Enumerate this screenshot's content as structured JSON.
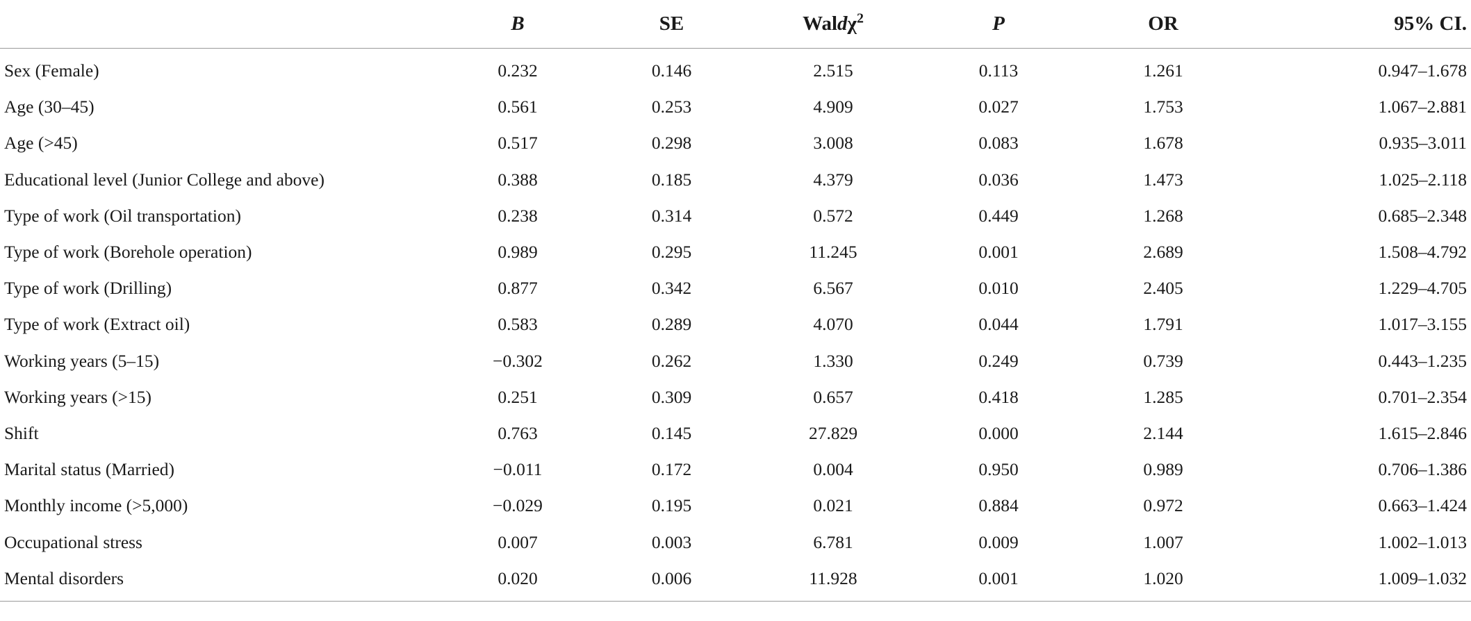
{
  "table": {
    "headers": {
      "label": "",
      "b": "B",
      "se": "SE",
      "wald_prefix": "Wal",
      "wald_italic": "d",
      "wald_chi": "χ",
      "wald_sup": "2",
      "p": "P",
      "or": "OR",
      "ci": "95% CI."
    },
    "rows": [
      {
        "label": "Sex (Female)",
        "b": "0.232",
        "se": "0.146",
        "wald": "2.515",
        "p": "0.113",
        "or": "1.261",
        "ci": "0.947–1.678"
      },
      {
        "label": "Age (30–45)",
        "b": "0.561",
        "se": "0.253",
        "wald": "4.909",
        "p": "0.027",
        "or": "1.753",
        "ci": "1.067–2.881"
      },
      {
        "label": "Age (>45)",
        "b": "0.517",
        "se": "0.298",
        "wald": "3.008",
        "p": "0.083",
        "or": "1.678",
        "ci": "0.935–3.011"
      },
      {
        "label": "Educational level (Junior College and above)",
        "b": "0.388",
        "se": "0.185",
        "wald": "4.379",
        "p": "0.036",
        "or": "1.473",
        "ci": "1.025–2.118"
      },
      {
        "label": "Type of work (Oil transportation)",
        "b": "0.238",
        "se": "0.314",
        "wald": "0.572",
        "p": "0.449",
        "or": "1.268",
        "ci": "0.685–2.348"
      },
      {
        "label": "Type of work (Borehole operation)",
        "b": "0.989",
        "se": "0.295",
        "wald": "11.245",
        "p": "0.001",
        "or": "2.689",
        "ci": "1.508–4.792"
      },
      {
        "label": "Type of work (Drilling)",
        "b": "0.877",
        "se": "0.342",
        "wald": "6.567",
        "p": "0.010",
        "or": "2.405",
        "ci": "1.229–4.705"
      },
      {
        "label": "Type of work (Extract oil)",
        "b": "0.583",
        "se": "0.289",
        "wald": "4.070",
        "p": "0.044",
        "or": "1.791",
        "ci": "1.017–3.155"
      },
      {
        "label": "Working years (5–15)",
        "b": "−0.302",
        "se": "0.262",
        "wald": "1.330",
        "p": "0.249",
        "or": "0.739",
        "ci": "0.443–1.235"
      },
      {
        "label": "Working years (>15)",
        "b": "0.251",
        "se": "0.309",
        "wald": "0.657",
        "p": "0.418",
        "or": "1.285",
        "ci": "0.701–2.354"
      },
      {
        "label": "Shift",
        "b": "0.763",
        "se": "0.145",
        "wald": "27.829",
        "p": "0.000",
        "or": "2.144",
        "ci": "1.615–2.846"
      },
      {
        "label": "Marital status (Married)",
        "b": "−0.011",
        "se": "0.172",
        "wald": "0.004",
        "p": "0.950",
        "or": "0.989",
        "ci": "0.706–1.386"
      },
      {
        "label": "Monthly income (>5,000)",
        "b": "−0.029",
        "se": "0.195",
        "wald": "0.021",
        "p": "0.884",
        "or": "0.972",
        "ci": "0.663–1.424"
      },
      {
        "label": "Occupational stress",
        "b": "0.007",
        "se": "0.003",
        "wald": "6.781",
        "p": "0.009",
        "or": "1.007",
        "ci": "1.002–1.013"
      },
      {
        "label": "Mental disorders",
        "b": "0.020",
        "se": "0.006",
        "wald": "11.928",
        "p": "0.001",
        "or": "1.020",
        "ci": "1.009–1.032"
      }
    ]
  }
}
